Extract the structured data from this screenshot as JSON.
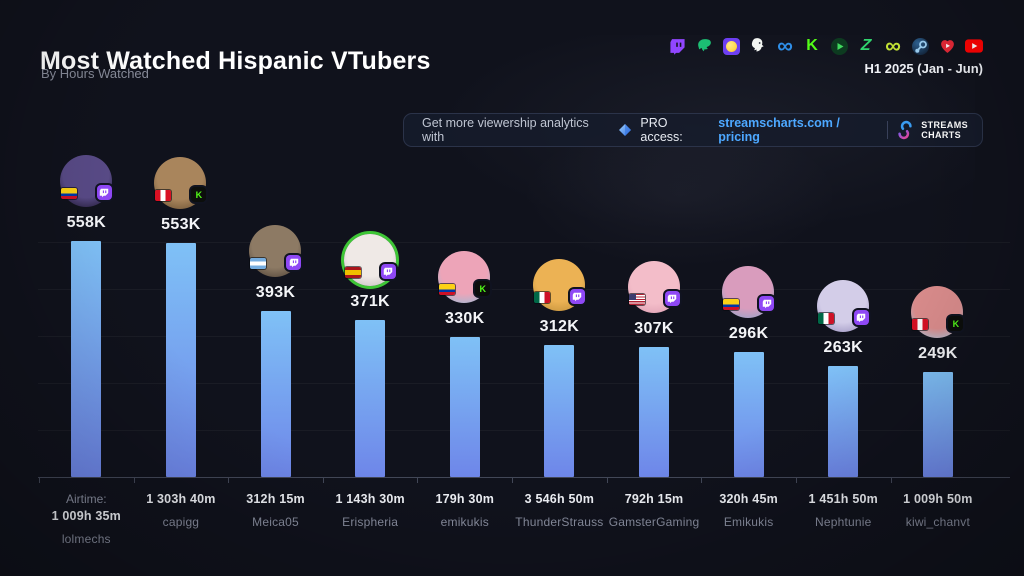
{
  "header": {
    "title": "Most Watched Hispanic VTubers",
    "subtitle": "By Hours Watched",
    "period": "H1 2025 (Jan - Jun)",
    "platform_icons": [
      "twitch",
      "trovo",
      "parti",
      "chzzk",
      "soop",
      "kick",
      "green-play",
      "dlive",
      "soop-lime",
      "steam",
      "noice",
      "youtube"
    ]
  },
  "banner": {
    "message": "Get more viewership analytics with",
    "pro_label": "PRO access:",
    "link_label": "streamscharts.com / pricing",
    "brand_line1": "STREAMS",
    "brand_line2": "CHARTS"
  },
  "colors": {
    "background": "#10121c",
    "bar_top": "#7fc1f6",
    "bar_bottom": "#6e86e9",
    "link": "#4da8ff",
    "axis": "#424757",
    "twitch": "#9146ff",
    "kick_green": "#53fc18"
  },
  "chart_data": {
    "type": "bar",
    "title": "Most Watched Hispanic VTubers",
    "subtitle": "By Hours Watched",
    "period": "H1 2025 (Jan - Jun)",
    "metric": "Hours Watched",
    "ylim": [
      0,
      600000
    ],
    "grid": "faint horizontal gridlines, baseline with ticks, no y-axis labels",
    "legend_position": "none",
    "categories": [
      "lolmechs",
      "capigg",
      "Meica05",
      "Erispheria",
      "emikukis",
      "ThunderStrauss",
      "GamsterGaming",
      "Emikukis",
      "Nephtunie",
      "kiwi_chanvt"
    ],
    "values": [
      558000,
      553000,
      393000,
      371000,
      330000,
      312000,
      307000,
      296000,
      263000,
      249000
    ],
    "value_labels": [
      "558K",
      "553K",
      "393K",
      "371K",
      "330K",
      "312K",
      "307K",
      "296K",
      "263K",
      "249K"
    ],
    "airtime_prefix": "Airtime:",
    "airtimes": [
      "1 009h 35m",
      "1 303h 40m",
      "312h 15m",
      "1 143h 30m",
      "179h 30m",
      "3 546h 50m",
      "792h 15m",
      "320h 45m",
      "1 451h 50m",
      "1 009h 50m"
    ]
  },
  "streamers": [
    {
      "name": "lolmechs",
      "value_label": "558K",
      "value_k": 558,
      "airtime": "1 009h 35m",
      "flag": "colombia",
      "platform": "twitch",
      "avatar_colors": [
        "#584a86",
        "#181226"
      ]
    },
    {
      "name": "capigg",
      "value_label": "553K",
      "value_k": 553,
      "airtime": "1 303h 40m",
      "flag": "peru",
      "platform": "kick",
      "avatar_colors": [
        "#a9855c",
        "#5f482c"
      ]
    },
    {
      "name": "Meica05",
      "value_label": "393K",
      "value_k": 393,
      "airtime": "312h 15m",
      "flag": "argentina",
      "platform": "twitch",
      "avatar_colors": [
        "#8d7a64",
        "#42372e"
      ]
    },
    {
      "name": "Erispheria",
      "value_label": "371K",
      "value_k": 371,
      "airtime": "1 143h 30m",
      "flag": "spain",
      "platform": "twitch",
      "avatar_colors": [
        "#efe9e6",
        "#bdb8ba"
      ],
      "ring_color": "#3ec636"
    },
    {
      "name": "emikukis",
      "value_label": "330K",
      "value_k": 330,
      "airtime": "179h 30m",
      "flag": "colombia",
      "platform": "kick",
      "avatar_colors": [
        "#eda4b8",
        "#86c3e0"
      ]
    },
    {
      "name": "ThunderStrauss",
      "value_label": "312K",
      "value_k": 312,
      "airtime": "3 546h 50m",
      "flag": "mexico",
      "platform": "twitch",
      "avatar_colors": [
        "#ecb254",
        "#b98a35"
      ]
    },
    {
      "name": "GamsterGaming",
      "value_label": "307K",
      "value_k": 307,
      "airtime": "792h 15m",
      "flag": "usa",
      "platform": "twitch",
      "avatar_colors": [
        "#f3bdc9",
        "#d998ad"
      ]
    },
    {
      "name": "Emikukis",
      "value_label": "296K",
      "value_k": 296,
      "airtime": "320h 45m",
      "flag": "colombia",
      "platform": "twitch",
      "avatar_colors": [
        "#d99cbd",
        "#7fa8cf"
      ]
    },
    {
      "name": "Nephtunie",
      "value_label": "263K",
      "value_k": 263,
      "airtime": "1 451h 50m",
      "flag": "mexico",
      "platform": "twitch",
      "avatar_colors": [
        "#d3cde8",
        "#8d84b5"
      ]
    },
    {
      "name": "kiwi_chanvt",
      "value_label": "249K",
      "value_k": 249,
      "airtime": "1 009h 50m",
      "flag": "peru",
      "platform": "kick",
      "avatar_colors": [
        "#dd8e8e",
        "#9fd0ec"
      ]
    }
  ]
}
